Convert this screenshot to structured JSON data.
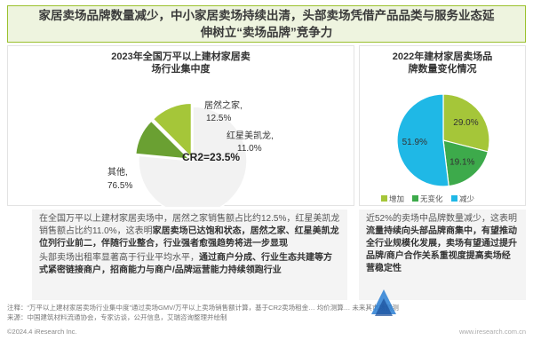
{
  "title": "家居卖场品牌数量减少，中小家居卖场持续出清，头部卖场凭借产品品类与服务业态延伸树立“卖场品牌”竞争力",
  "chart_data": [
    {
      "type": "pie",
      "title": "2023年全国万平以上建材家居卖场行业集中度",
      "slices": [
        {
          "label": "居然之家,",
          "value": 12.5,
          "display": "12.5%",
          "color": "#a5c639"
        },
        {
          "label": "红星美凯龙,",
          "value": 11.0,
          "display": "11.0%",
          "color": "#6aa032"
        },
        {
          "label": "其他,",
          "value": 76.5,
          "display": "76.5%",
          "color": "#f2f2f2"
        }
      ],
      "annotation": "CR2=23.5%"
    },
    {
      "type": "pie",
      "title": "2022年建材家居卖场品牌数量变化情况",
      "slices": [
        {
          "label": "增加",
          "value": 29.0,
          "display": "29.0%",
          "color": "#a5c639"
        },
        {
          "label": "无变化",
          "value": 19.1,
          "display": "19.1%",
          "color": "#3daa4b"
        },
        {
          "label": "减少",
          "value": 51.9,
          "display": "51.9%",
          "color": "#1fb8e6"
        }
      ],
      "legend_position": "bottom"
    }
  ],
  "desc_left": {
    "p1_a": "在全国万平以上建材家居卖场中，居然之家销售额占比约12.5%，红星美凯龙销售额占比约11.0%，这表明",
    "p1_b": "家居卖场已达饱和状态，居然之家、红星美凯龙位列行业前二，伴随行业整合，行业强者愈强趋势将进一步显现",
    "p2_a": "头部卖场出租率显著高于行业平均水平，",
    "p2_b": "通过商户分成、行业生态共建等方式紧密链接商户，招商能力与商户/品牌运营能力持续领跑行业"
  },
  "desc_right": {
    "a": "近52%的卖场中品牌数量减少，这表明",
    "b": "流量持续向头部品牌商集中，有望推动全行业规模化发展，卖场有望通过提升品牌/商户合作关系重视度提高卖场经营稳定性"
  },
  "footer": {
    "note": "注释：“万平以上建材家居卖场行业集中度”通过卖场GMV/万平以上卖场销售额计算，基于CR2卖场租金… 均价测算… 未来其市场预测",
    "source": "来源：中国建筑材料流通协会，专家访谈，公开信息，艾瑞咨询整理并绘制",
    "copyright": "©2024.4 iResearch Inc.",
    "site": "www.iresearch.com.cn"
  }
}
